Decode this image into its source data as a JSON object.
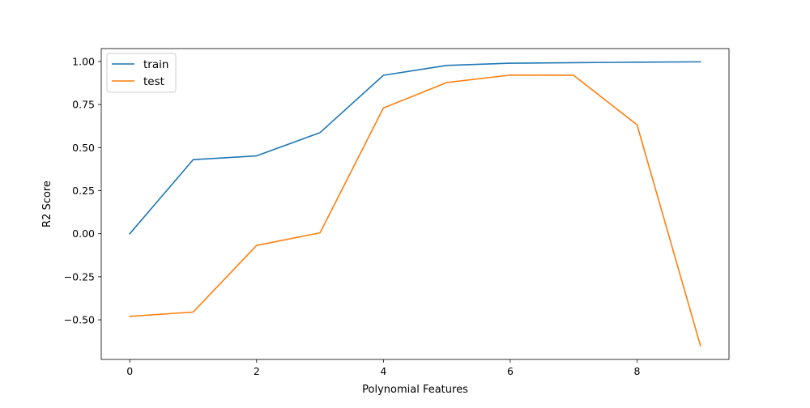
{
  "chart_data": {
    "type": "line",
    "title": "",
    "xlabel": "Polynomial Features",
    "ylabel": "R2 Score",
    "x": [
      0,
      1,
      2,
      3,
      4,
      5,
      6,
      7,
      8,
      9
    ],
    "xlim": [
      -0.45,
      9.45
    ],
    "ylim": [
      -0.73,
      1.075
    ],
    "x_ticks": [
      0,
      2,
      4,
      6,
      8
    ],
    "x_tick_labels": [
      "0",
      "2",
      "4",
      "6",
      "8"
    ],
    "y_ticks": [
      -0.5,
      -0.25,
      0,
      0.25,
      0.5,
      0.75,
      1.0
    ],
    "y_tick_labels": [
      "−0.50",
      "−0.25",
      "0.00",
      "0.25",
      "0.50",
      "0.75",
      "1.00"
    ],
    "grid": false,
    "legend_position": "top-left",
    "series": [
      {
        "name": "train",
        "color": "#1f77b4",
        "values": [
          0.0,
          0.43,
          0.452,
          0.587,
          0.92,
          0.977,
          0.99,
          0.993,
          0.996,
          0.998
        ]
      },
      {
        "name": "test",
        "color": "#ff7f0e",
        "values": [
          -0.48,
          -0.455,
          -0.068,
          0.005,
          0.73,
          0.878,
          0.921,
          0.92,
          0.632,
          -0.65
        ]
      }
    ]
  }
}
